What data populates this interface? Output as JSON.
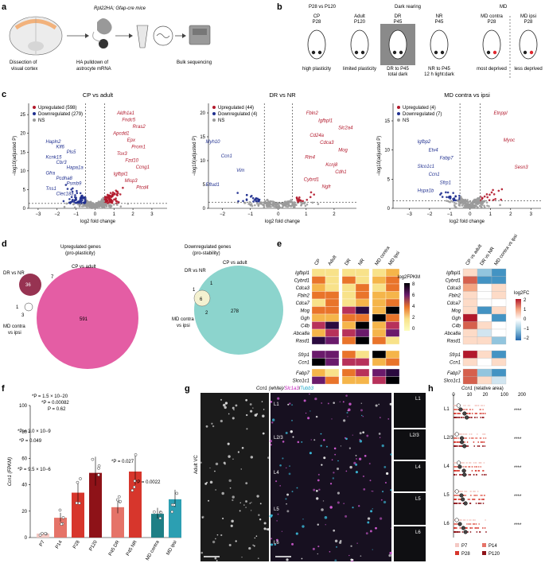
{
  "panel_labels": [
    "a",
    "b",
    "c",
    "d",
    "e",
    "f",
    "g",
    "h"
  ],
  "panel_a": {
    "mouse_line": "Rpl22HA; Gfap-cre mice",
    "steps": [
      "Dissection of visual cortex",
      "HA pulldown of astrocyte mRNA",
      "Bulk sequencing"
    ]
  },
  "panel_b": {
    "groups": [
      {
        "top": "P28 vs P120",
        "sub": ""
      },
      {
        "top": "Dark rearing",
        "sub": ""
      },
      {
        "top": "MD",
        "sub": ""
      }
    ],
    "mice": [
      {
        "label": "CP",
        "age": "P28",
        "desc": "high plasticity"
      },
      {
        "label": "Adult",
        "age": "P120",
        "desc": "limited plasticity"
      },
      {
        "label": "DR",
        "age": "P45",
        "desc": "DR to P45, total dark"
      },
      {
        "label": "NR",
        "age": "P45",
        "desc": "NR to P45, 12 h light:dark"
      },
      {
        "label": "MD contra",
        "age": "P28, 2 days MD",
        "desc": "most deprived"
      },
      {
        "label": "MD ipsi",
        "age": "P28, 2 days MD",
        "desc": "less deprived"
      }
    ]
  },
  "panel_c": {
    "ylabel": "−log10(adjusted P)",
    "xlabel": "log2 fold change",
    "plots": [
      {
        "title": "CP vs adult",
        "up": "Upregulated (598)",
        "down": "Downregulated (279)",
        "ns": "NS",
        "up_genes": [
          "Aldh1a1",
          "Fndc5",
          "Rras2",
          "Apcdd1",
          "Epx",
          "Prom1",
          "Tox3",
          "Fzd10",
          "Ccng1",
          "Igfbpl1",
          "Misp3",
          "Ptcd4"
        ],
        "down_genes": [
          "Hapln2",
          "Klf6",
          "Pls5",
          "Kcnk15",
          "Cbr3",
          "Hapa1a",
          "Gfra",
          "Pcdha8",
          "Psmb9",
          "Tns1",
          "Clec18a"
        ],
        "xticks": [
          "−3",
          "−2",
          "−1",
          "0",
          "1",
          "2",
          "3"
        ],
        "yticks": [
          "0",
          "5",
          "10",
          "15",
          "20",
          "25"
        ]
      },
      {
        "title": "DR vs NR",
        "up": "Upregulated (44)",
        "down": "Downregulated (4)",
        "ns": "NS",
        "up_genes": [
          "Fbln2",
          "Igfbpl1",
          "Slc2a4",
          "Cd24a",
          "Cdca3",
          "Mog",
          "Rtn4",
          "Kcnj8",
          "Cdh1",
          "Cybrd1",
          "Ngfr"
        ],
        "down_genes": [
          "Myh10",
          "Ccn1",
          "Vim",
          "Eftud1"
        ],
        "xticks": [
          "−2",
          "−1",
          "0",
          "1",
          "2"
        ],
        "yticks": [
          "0",
          "5",
          "10",
          "15",
          "20"
        ]
      },
      {
        "title": "MD contra vs ipsi",
        "up": "Upregulated (4)",
        "down": "Downregulated (7)",
        "ns": "NS",
        "up_genes": [
          "Etnppl",
          "Myoc",
          "Sesn3"
        ],
        "down_genes": [
          "Igfbp2",
          "Etv4",
          "Fabp7",
          "Slco1c1",
          "Ccn1",
          "Sfrp1",
          "Hspa1b"
        ],
        "xticks": [
          "−3",
          "−2",
          "−1",
          "0",
          "1",
          "2",
          "3"
        ],
        "yticks": [
          "0",
          "5",
          "10",
          "15"
        ]
      }
    ]
  },
  "panel_d": {
    "left_title": "Upregulated genes (pro-plasticity)",
    "right_title": "Downregulated genes (pro-stability)",
    "left": {
      "big_label": "CP vs adult",
      "big": "591",
      "dr_label": "DR vs NR",
      "dr": "36",
      "overlap_dr": "7",
      "overlap_md": "1",
      "md_only": "3",
      "md_label": "MD contra vs ipsi"
    },
    "right": {
      "big_label": "CP vs adult",
      "big": "278",
      "dr_label": "DR vs NR",
      "md": "6",
      "overlap1": "1",
      "overlap2": "1",
      "md2": "2",
      "md_label": "MD contra vs ipsi"
    }
  },
  "panel_e": {
    "columns": [
      "CP",
      "Adult",
      "DR",
      "NR",
      "MD contra",
      "MD ipsi"
    ],
    "fc_columns": [
      "CP vs adult",
      "DR vs NR",
      "MD contra vs ipsi"
    ],
    "group1": [
      "Igfbpl1",
      "Cybrd1",
      "Cdca3",
      "Fbln2",
      "Cdca7",
      "Mog",
      "Ggh",
      "C4b",
      "Abca8a",
      "Rasd1"
    ],
    "group2": [
      "Sfrp1",
      "Ccn1"
    ],
    "group3": [
      "Fabp7",
      "Slco1c1"
    ],
    "fpkm_label": "log2FPKM",
    "fpkm_ticks": [
      "8",
      "6",
      "4",
      "2",
      "0"
    ],
    "fc_label": "log2FC",
    "fc_ticks": [
      "2",
      "1",
      "0",
      "−1",
      "−2"
    ]
  },
  "panel_f": {
    "ylabel": "Ccn1 (FPKM)",
    "yticks": [
      "0",
      "20",
      "40",
      "60",
      "80",
      "100"
    ],
    "chart_data": {
      "type": "bar",
      "categories": [
        "P7",
        "P14",
        "P28",
        "P120",
        "P45 DR",
        "P45 NR",
        "MD contra",
        "MD ipsi"
      ],
      "values": [
        3,
        15,
        34,
        49,
        23,
        50,
        18,
        29
      ],
      "ylim": [
        0,
        100
      ],
      "ylabel": "Ccn1 (FPKM)"
    },
    "stats": [
      "*P = 1.5 × 10−20",
      "*P = 0.00082",
      "P = 0.62",
      "*P = 3.0 × 10−9",
      "*P = 0.049",
      "*P = 9.5 × 10−6",
      "*P = 0.027",
      "*P = 0.0022"
    ]
  },
  "panel_g": {
    "title_white": "Ccn1 (white)/",
    "title_mag": "Slc1a3",
    "title_sep": "/",
    "title_cyan": "Tubb3",
    "side_label": "Adult VC",
    "layers": [
      "L1",
      "L2/3",
      "L4",
      "L5",
      "L6"
    ]
  },
  "panel_h": {
    "title": "Ccn1 (relative area)",
    "xticks": [
      "0",
      "10",
      "20",
      "100",
      "200"
    ],
    "layers": [
      "L1",
      "L2/3",
      "L4",
      "L5",
      "L6"
    ],
    "legend": [
      "P7",
      "P14",
      "P28",
      "P120"
    ],
    "colors": {
      "P7": "#f4c9c4",
      "P14": "#e57368",
      "P28": "#d7362c",
      "P120": "#8e1218"
    }
  }
}
